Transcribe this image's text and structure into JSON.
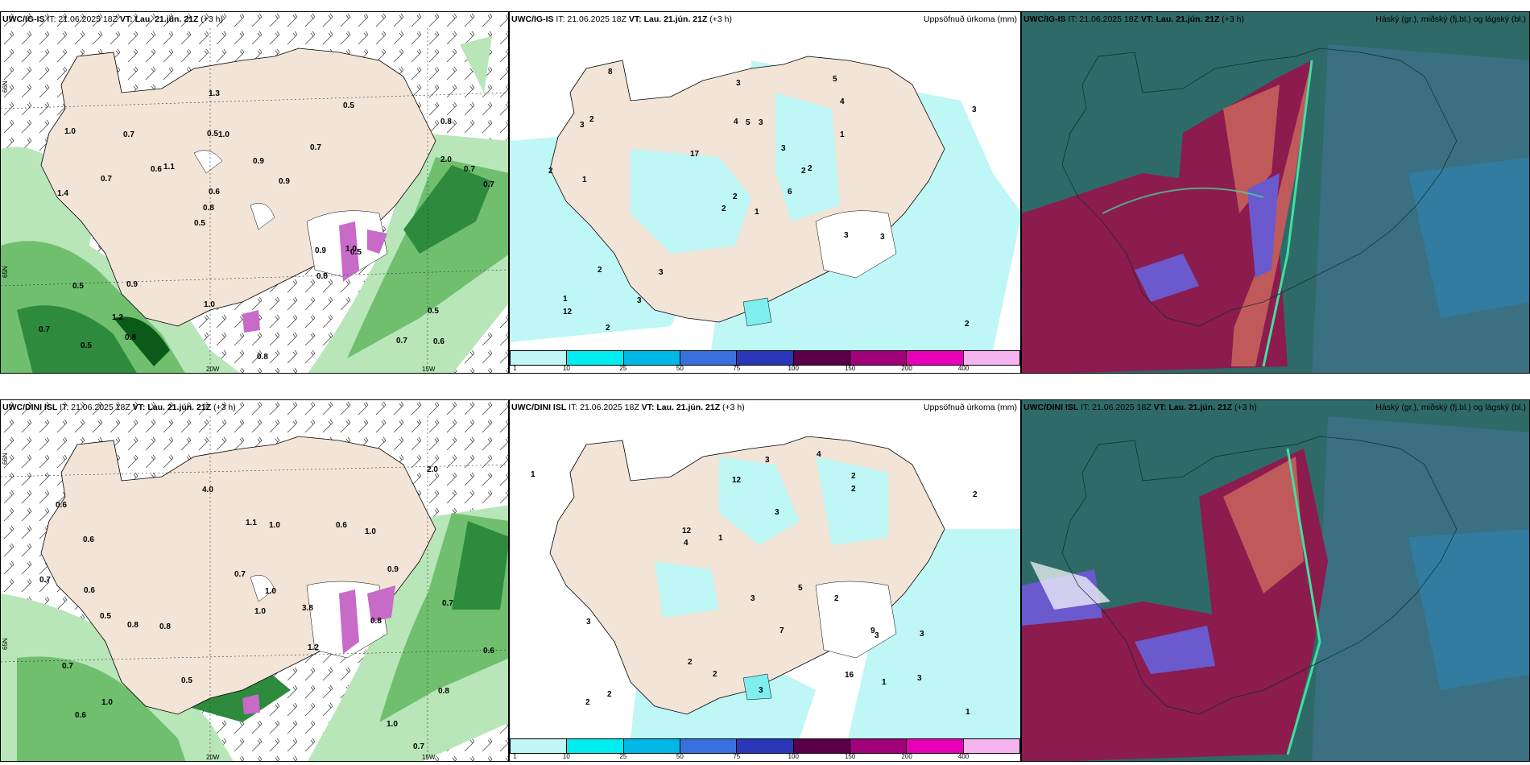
{
  "panels": {
    "p1": {
      "model": "UWC/IG-IS",
      "it": "IT: 21.06.2025 18Z",
      "vt_label": "VT:",
      "vt": "Lau. 21.jún. 21Z",
      "offset": "(+3 h)",
      "right": ""
    },
    "p2": {
      "model": "UWC/IG-IS",
      "it": "IT: 21.06.2025 18Z",
      "vt_label": "VT:",
      "vt": "Lau. 21.jún. 21Z",
      "offset": "(+3 h)",
      "right": "Uppsöfnuð úrkoma (mm)"
    },
    "p3": {
      "model": "UWC/IG-IS",
      "it": "IT: 21.06.2025 18Z",
      "vt_label": "VT:",
      "vt": "Lau. 21.jún. 21Z",
      "offset": "(+3 h)",
      "right": "Háský (gr.), miðský (fj.bl.) og lágský (bl.)"
    },
    "p4": {
      "model": "UWC/DINI ISL",
      "it": "IT: 21.06.2025 18Z",
      "vt_label": "VT:",
      "vt": "Lau. 21.jún. 21Z",
      "offset": "(+3 h)",
      "right": ""
    },
    "p5": {
      "model": "UWC/DINI ISL",
      "it": "IT: 21.06.2025 18Z",
      "vt_label": "VT:",
      "vt": "Lau. 21.jún. 21Z",
      "offset": "(+3 h)",
      "right": "Uppsöfnuð úrkoma (mm)"
    },
    "p6": {
      "model": "UWC/DINI ISL",
      "it": "IT: 21.06.2025 18Z",
      "vt_label": "VT:",
      "vt": "Lau. 21.jún. 21Z",
      "offset": "(+3 h)",
      "right": "Háský (gr.), miðský (fj.bl.) og lágský (bl.)"
    }
  },
  "axis": {
    "lon_20": "20W",
    "lon_15": "15W",
    "lat_66": "66N",
    "lat_65": "65N",
    "lat_64": "64N"
  },
  "colorbar": {
    "ticks": [
      "1",
      "10",
      "25",
      "50",
      "75",
      "100",
      "150",
      "200",
      "400"
    ],
    "colors": [
      "#bff6f6",
      "#00eef0",
      "#00b8e8",
      "#3a6fe0",
      "#2a36b8",
      "#5a0048",
      "#a0007a",
      "#e800b8",
      "#f5b3ef"
    ]
  },
  "colors": {
    "land": "#f2e4d6",
    "ocean": "#ffffff",
    "cloud_high": "#8c1b4e",
    "cloud_mid": "#6a5acd",
    "cloud_low": "#2e6a68"
  },
  "labels_top": [
    "0.6",
    "1.4",
    "0.8",
    "0.5",
    "0.7",
    "0.5",
    "0.5",
    "0.9",
    "0.5",
    "1.1",
    "0.7",
    "1.2",
    "1.0",
    "0.9",
    "0.5",
    "1.0",
    "1.3",
    "0.7",
    "0.9",
    "2.0",
    "0.8",
    "1.0",
    "0.6",
    "0.7",
    "0.5",
    "0.9",
    "0.7",
    "0.5",
    "1.0",
    "0.8",
    "0.6",
    "0.7",
    "0.8",
    "0.8",
    "0.7"
  ],
  "labels_bottom": [
    "0.7",
    "0.5",
    "1.2",
    "0.6",
    "0.8",
    "0.6",
    "1.0",
    "0.8",
    "1.0",
    "1.1",
    "0.6",
    "1.0",
    "0.5",
    "4.0",
    "3.8",
    "0.7",
    "0.8",
    "1.0",
    "0.7",
    "0.6",
    "2.0",
    "1.0",
    "0.9",
    "0.6",
    "0.7",
    "0.6",
    "0.8",
    "1.0",
    "0.7"
  ],
  "rain_top": [
    "1",
    "3",
    "2",
    "1",
    "2",
    "3",
    "5",
    "3",
    "4",
    "6",
    "8",
    "2",
    "1",
    "3",
    "2",
    "1",
    "2",
    "4",
    "3",
    "2",
    "17",
    "12",
    "3",
    "5",
    "2",
    "3",
    "2",
    "3",
    "2",
    "3"
  ],
  "rain_bottom": [
    "2",
    "3",
    "5",
    "7",
    "12",
    "4",
    "3",
    "2",
    "1",
    "2",
    "1",
    "4",
    "2",
    "3",
    "16",
    "12",
    "9",
    "3",
    "3",
    "2",
    "1",
    "2",
    "3",
    "2",
    "3",
    "2",
    "1",
    "3"
  ]
}
